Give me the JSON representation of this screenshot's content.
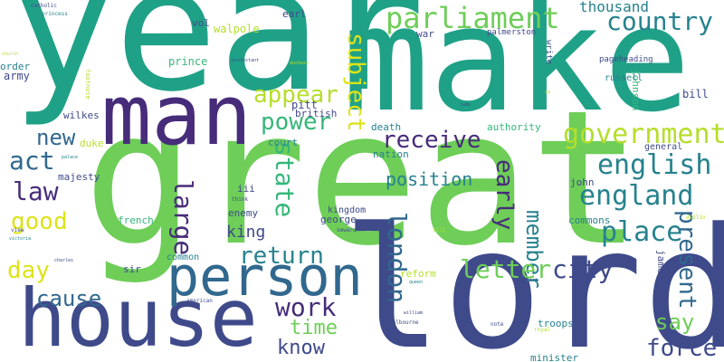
{
  "palette": {
    "purple": "#472c7a",
    "indigo": "#3f4a8a",
    "blue": "#31688e",
    "teal": "#26828e",
    "green_teal": "#1fa187",
    "green": "#35b779",
    "light_green": "#6ece58",
    "lime": "#b5de2b",
    "yellow": "#dde318"
  },
  "words": [
    {
      "text": "year",
      "color": "#1fa187"
    },
    {
      "text": "make",
      "color": "#1fa187"
    },
    {
      "text": "great",
      "color": "#6ece58"
    },
    {
      "text": "lord",
      "color": "#3f4a8a"
    },
    {
      "text": "man",
      "color": "#472c7a"
    },
    {
      "text": "house",
      "color": "#3f4a8a"
    },
    {
      "text": "person",
      "color": "#31688e"
    },
    {
      "text": "parliament",
      "color": "#6ece58"
    },
    {
      "text": "country",
      "color": "#26828e"
    },
    {
      "text": "thousand",
      "color": "#26828e"
    },
    {
      "text": "government",
      "color": "#b5de2b"
    },
    {
      "text": "english",
      "color": "#26828e"
    },
    {
      "text": "england",
      "color": "#26828e"
    },
    {
      "text": "receive",
      "color": "#472c7a"
    },
    {
      "text": "appear",
      "color": "#b5de2b"
    },
    {
      "text": "power",
      "color": "#35b779"
    },
    {
      "text": "subject",
      "color": "#dde318"
    },
    {
      "text": "new",
      "color": "#31688e"
    },
    {
      "text": "act",
      "color": "#31688e"
    },
    {
      "text": "law",
      "color": "#472c7a"
    },
    {
      "text": "good",
      "color": "#dde318"
    },
    {
      "text": "day",
      "color": "#dde318"
    },
    {
      "text": "cause",
      "color": "#31688e"
    },
    {
      "text": "state",
      "color": "#35b779"
    },
    {
      "text": "large",
      "color": "#472c7a"
    },
    {
      "text": "london",
      "color": "#31688e"
    },
    {
      "text": "early",
      "color": "#472c7a"
    },
    {
      "text": "member",
      "color": "#26828e"
    },
    {
      "text": "position",
      "color": "#26828e"
    },
    {
      "text": "place",
      "color": "#26828e"
    },
    {
      "text": "present",
      "color": "#31688e"
    },
    {
      "text": "letter",
      "color": "#6ece58"
    },
    {
      "text": "city",
      "color": "#3f4a8a"
    },
    {
      "text": "return",
      "color": "#26828e"
    },
    {
      "text": "king",
      "color": "#3f4a8a"
    },
    {
      "text": "work",
      "color": "#472c7a"
    },
    {
      "text": "time",
      "color": "#6ece58"
    },
    {
      "text": "know",
      "color": "#3f4a8a"
    },
    {
      "text": "say",
      "color": "#6ece58"
    },
    {
      "text": "force",
      "color": "#3f4a8a"
    },
    {
      "text": "walpole",
      "color": "#b5de2b"
    },
    {
      "text": "vol",
      "color": "#3f4a8a"
    },
    {
      "text": "earl",
      "color": "#3f4a8a"
    },
    {
      "text": "war",
      "color": "#3f4a8a"
    },
    {
      "text": "prince",
      "color": "#35b779"
    },
    {
      "text": "pitt",
      "color": "#3f4a8a"
    },
    {
      "text": "british",
      "color": "#3f4a8a"
    },
    {
      "text": "court",
      "color": "#26828e"
    },
    {
      "text": "death",
      "color": "#26828e"
    },
    {
      "text": "nation",
      "color": "#26828e"
    },
    {
      "text": "authority",
      "color": "#35b779"
    },
    {
      "text": "order",
      "color": "#26828e"
    },
    {
      "text": "army",
      "color": "#3f4a8a"
    },
    {
      "text": "wilkes",
      "color": "#3f4a8a"
    },
    {
      "text": "duke",
      "color": "#b5de2b"
    },
    {
      "text": "majesty",
      "color": "#3f4a8a"
    },
    {
      "text": "iii",
      "color": "#3f4a8a"
    },
    {
      "text": "enemy",
      "color": "#3f4a8a"
    },
    {
      "text": "kingdom",
      "color": "#3f4a8a"
    },
    {
      "text": "george",
      "color": "#3f4a8a"
    },
    {
      "text": "john",
      "color": "#3f4a8a"
    },
    {
      "text": "commons",
      "color": "#26828e"
    },
    {
      "text": "french",
      "color": "#35b779"
    },
    {
      "text": "sir",
      "color": "#3f4a8a"
    },
    {
      "text": "common",
      "color": "#26828e"
    },
    {
      "text": "reform",
      "color": "#b5de2b"
    },
    {
      "text": "troops",
      "color": "#26828e"
    },
    {
      "text": "minister",
      "color": "#26828e"
    },
    {
      "text": "james",
      "color": "#3f4a8a"
    },
    {
      "text": "bill",
      "color": "#3f4a8a"
    },
    {
      "text": "general",
      "color": "#3f4a8a"
    },
    {
      "text": "johnson",
      "color": "#35b779"
    },
    {
      "text": "russell",
      "color": "#26828e"
    },
    {
      "text": "pageheading",
      "color": "#3f4a8a"
    },
    {
      "text": "palmerston",
      "color": "#3f4a8a"
    },
    {
      "text": "write",
      "color": "#3f4a8a"
    },
    {
      "text": "catholic",
      "color": "#3f4a8a"
    },
    {
      "text": "princess",
      "color": "#26828e"
    },
    {
      "text": "footnote",
      "color": "#b5de2b"
    },
    {
      "text": "church",
      "color": "#b5de2b"
    },
    {
      "text": "protestant",
      "color": "#3f4a8a"
    },
    {
      "text": "duchess",
      "color": "#b5de2b"
    },
    {
      "text": "lady",
      "color": "#3f4a8a"
    },
    {
      "text": "sa",
      "color": "#b5de2b"
    },
    {
      "text": "palace",
      "color": "#26828e"
    },
    {
      "text": "think",
      "color": "#3f4a8a"
    },
    {
      "text": "view",
      "color": "#3f4a8a"
    },
    {
      "text": "victoria",
      "color": "#26828e"
    },
    {
      "text": "charles",
      "color": "#3f4a8a"
    },
    {
      "text": "american",
      "color": "#3f4a8a"
    },
    {
      "text": "william",
      "color": "#3f4a8a"
    },
    {
      "text": "melbourne",
      "color": "#3f4a8a"
    },
    {
      "text": "queen",
      "color": "#26828e"
    },
    {
      "text": "seward",
      "color": "#3f4a8a"
    },
    {
      "text": "albert",
      "color": "#3f4a8a"
    },
    {
      "text": "viii",
      "color": "#b5de2b"
    },
    {
      "text": "note",
      "color": "#3f4a8a"
    },
    {
      "text": "royal",
      "color": "#b5de2b"
    },
    {
      "text": "dublin",
      "color": "#b5de2b"
    }
  ]
}
